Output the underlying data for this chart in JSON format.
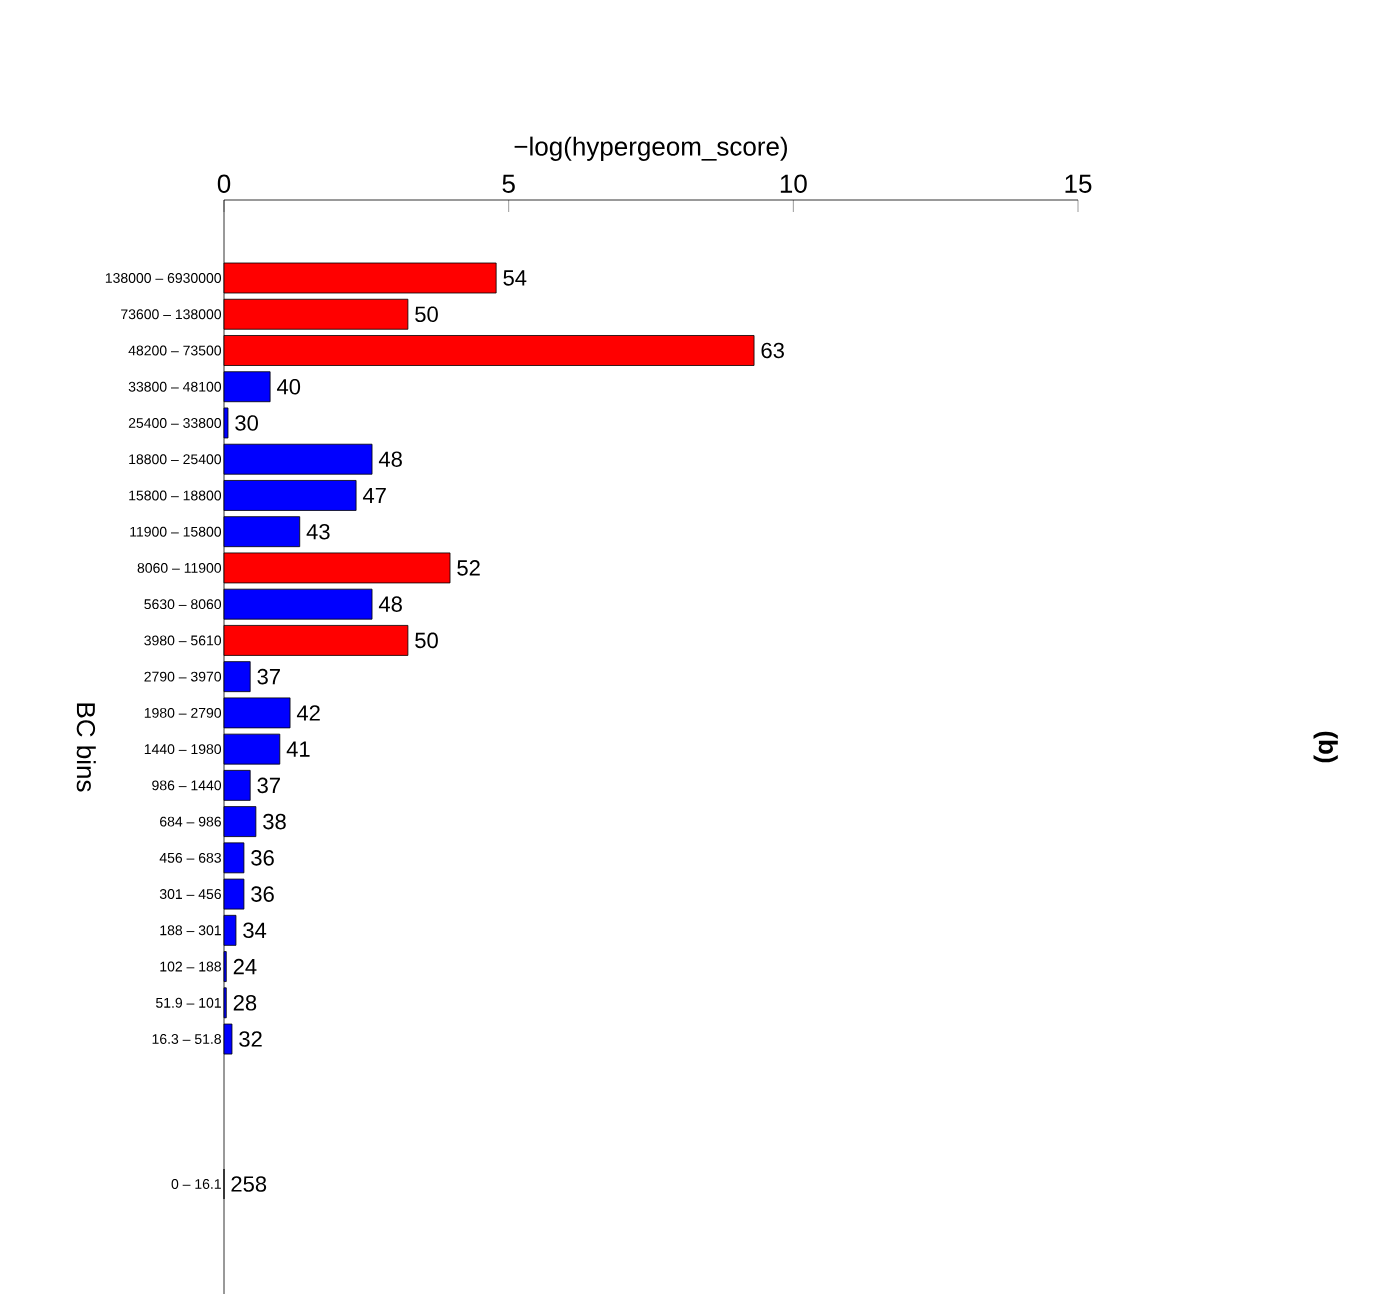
{
  "chart_data": {
    "type": "bar",
    "orientation": "horizontal",
    "xlabel": "−log(hypergeom_score)",
    "ylabel": "BC bins",
    "categories": [
      "138000 – 6930000",
      "73600 – 138000",
      "48200 – 73500",
      "33800 – 48100",
      "25400 – 33800",
      "18800 – 25400",
      "15800 – 18800",
      "11900 – 15800",
      "8060 – 11900",
      "5630 – 8060",
      "3980 – 5610",
      "2790 – 3970",
      "1980 – 2790",
      "1440 – 1980",
      "986 – 1440",
      "684 – 986",
      "456 – 683",
      "301 – 456",
      "188 – 301",
      "102 – 188",
      "51.9 – 101",
      "16.3 – 51.8",
      null,
      null,
      null,
      "0 – 16.1"
    ],
    "values": [
      4.78,
      3.23,
      9.31,
      0.81,
      0.07,
      2.6,
      2.32,
      1.33,
      3.97,
      2.6,
      3.23,
      0.46,
      1.16,
      0.98,
      0.46,
      0.56,
      0.35,
      0.35,
      0.21,
      0.04,
      0.04,
      0.14,
      null,
      null,
      null,
      0
    ],
    "colors": [
      "#ff0000",
      "#ff0000",
      "#ff0000",
      "#0000ff",
      "#0000ff",
      "#0000ff",
      "#0000ff",
      "#0000ff",
      "#ff0000",
      "#0000ff",
      "#ff0000",
      "#0000ff",
      "#0000ff",
      "#0000ff",
      "#0000ff",
      "#0000ff",
      "#0000ff",
      "#0000ff",
      "#0000ff",
      "#0000ff",
      "#0000ff",
      "#0000ff",
      null,
      null,
      null,
      "#0000ff"
    ],
    "xlim": [
      0,
      15
    ],
    "xticks": [
      0,
      5,
      10,
      15
    ],
    "annotations": [
      {
        "text": "54",
        "x": 4.78,
        "y": "138000 – 6930000"
      },
      {
        "text": "50",
        "x": 3.23,
        "y": "73600 – 138000"
      },
      {
        "text": "63",
        "x": 9.31,
        "y": "48200 – 73500"
      },
      {
        "text": "40",
        "x": 0.81,
        "y": "33800 – 48100"
      },
      {
        "text": "30",
        "x": 0.07,
        "y": "25400 – 33800"
      },
      {
        "text": "48",
        "x": 2.6,
        "y": "18800 – 25400"
      },
      {
        "text": "47",
        "x": 2.32,
        "y": "15800 – 18800"
      },
      {
        "text": "43",
        "x": 1.33,
        "y": "11900 – 15800"
      },
      {
        "text": "52",
        "x": 3.97,
        "y": "8060 – 11900"
      },
      {
        "text": "48",
        "x": 2.6,
        "y": "5630 – 8060"
      },
      {
        "text": "50",
        "x": 3.23,
        "y": "3980 – 5610"
      },
      {
        "text": "37",
        "x": 0.46,
        "y": "2790 – 3970"
      },
      {
        "text": "42",
        "x": 1.16,
        "y": "1980 – 2790"
      },
      {
        "text": "41",
        "x": 0.98,
        "y": "1440 – 1980"
      },
      {
        "text": "37",
        "x": 0.46,
        "y": "986 – 1440"
      },
      {
        "text": "38",
        "x": 0.56,
        "y": "684 – 986"
      },
      {
        "text": "36",
        "x": 0.35,
        "y": "456 – 683"
      },
      {
        "text": "36",
        "x": 0.35,
        "y": "301 – 456"
      },
      {
        "text": "34",
        "x": 0.21,
        "y": "188 – 301"
      },
      {
        "text": "24",
        "x": 0.04,
        "y": "102 – 188"
      },
      {
        "text": "28",
        "x": 0.04,
        "y": "51.9 – 101"
      },
      {
        "text": "32",
        "x": 0.14,
        "y": "16.3 – 51.8"
      },
      {
        "text": "258",
        "x": 0,
        "y": "0 – 16.1"
      },
      "(b)"
    ]
  }
}
